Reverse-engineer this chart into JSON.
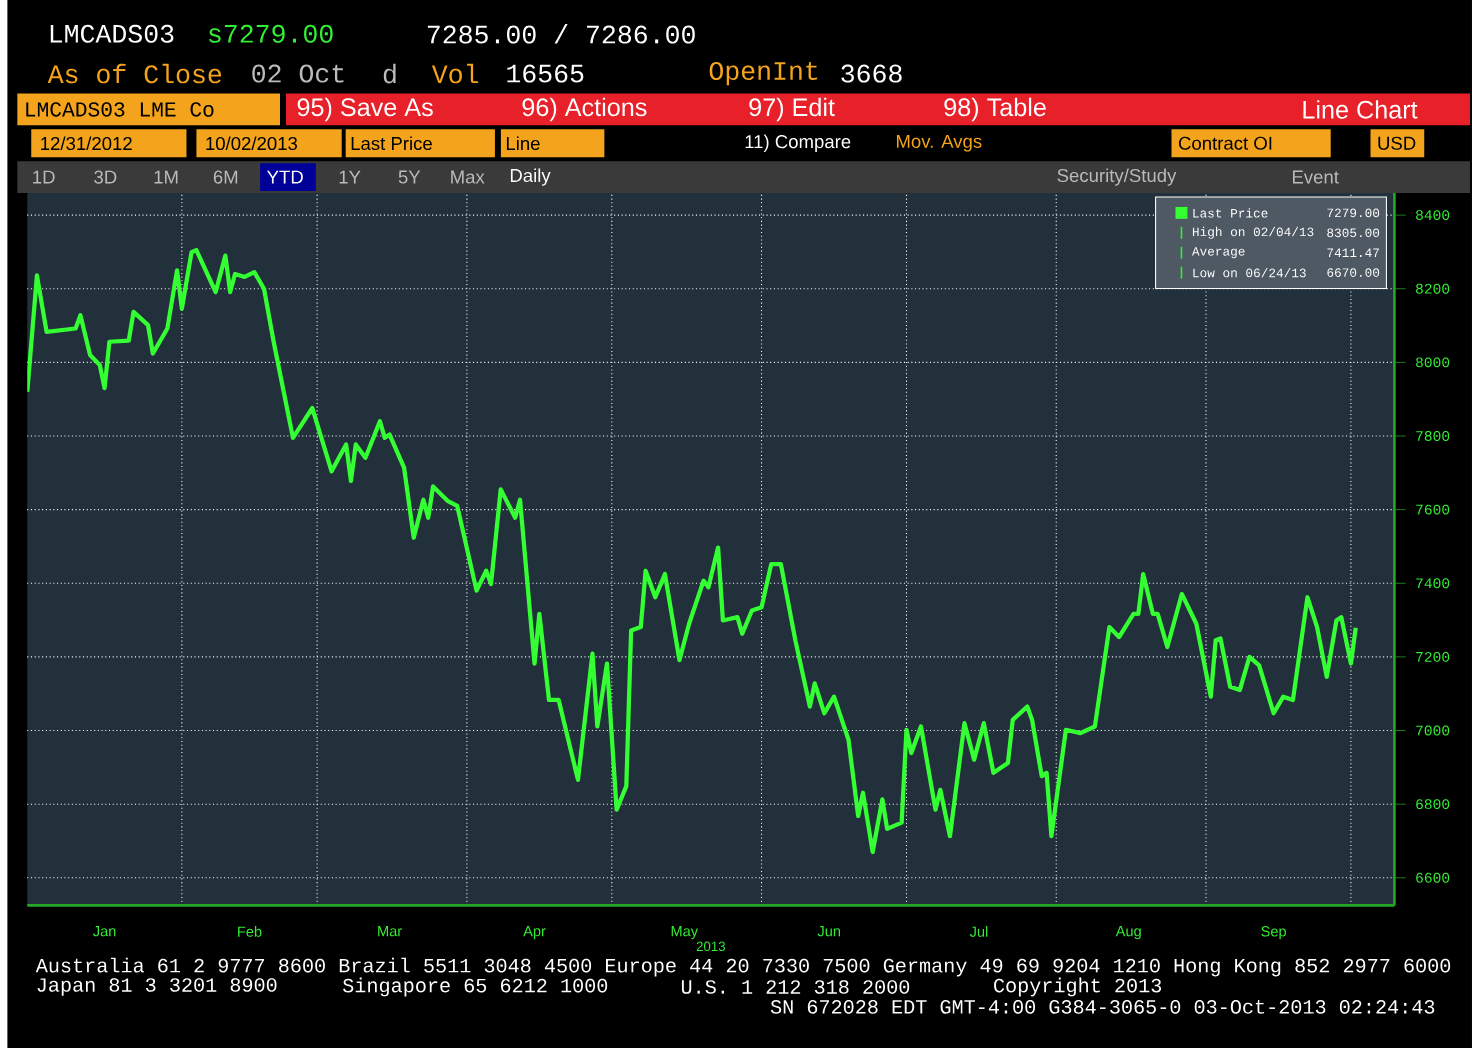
{
  "chart_data": {
    "type": "line",
    "title": "LMCADS03",
    "xlabel": "2013",
    "xlim": [
      "2012-12-31",
      "2013-10-10"
    ],
    "ylim": [
      6525,
      8460
    ],
    "xticks": [
      {
        "value": "2013-01-16",
        "label": "Jan"
      },
      {
        "value": "2013-02-01",
        "label": null
      },
      {
        "value": "2013-02-15",
        "label": "Feb"
      },
      {
        "value": "2013-03-01",
        "label": null
      },
      {
        "value": "2013-03-16",
        "label": "Mar"
      },
      {
        "value": "2013-04-01",
        "label": null
      },
      {
        "value": "2013-04-15",
        "label": "Apr"
      },
      {
        "value": "2013-05-01",
        "label": null
      },
      {
        "value": "2013-05-16",
        "label": "May"
      },
      {
        "value": "2013-06-01",
        "label": null
      },
      {
        "value": "2013-06-15",
        "label": "Jun"
      },
      {
        "value": "2013-07-01",
        "label": null
      },
      {
        "value": "2013-07-16",
        "label": "Jul"
      },
      {
        "value": "2013-08-01",
        "label": null
      },
      {
        "value": "2013-08-16",
        "label": "Aug"
      },
      {
        "value": "2013-09-01",
        "label": null
      },
      {
        "value": "2013-09-15",
        "label": "Sep"
      },
      {
        "value": "2013-10-01",
        "label": null
      }
    ],
    "yticks": [
      6600,
      6800,
      7000,
      7200,
      7400,
      7600,
      7800,
      8000,
      8200,
      8400
    ],
    "grid": true,
    "legend": "top right",
    "series": [
      {
        "name": "Last Price",
        "color": "#33ff33",
        "x": [
          "2012-12-31",
          "2013-01-02",
          "2013-01-04",
          "2013-01-10",
          "2013-01-11",
          "2013-01-13",
          "2013-01-15",
          "2013-01-16",
          "2013-01-17",
          "2013-01-21",
          "2013-01-22",
          "2013-01-25",
          "2013-01-26",
          "2013-01-29",
          "2013-01-31",
          "2013-02-01",
          "2013-02-03",
          "2013-02-04",
          "2013-02-08",
          "2013-02-10",
          "2013-02-11",
          "2013-02-12",
          "2013-02-14",
          "2013-02-16",
          "2013-02-18",
          "2013-02-20",
          "2013-02-24",
          "2013-02-28",
          "2013-03-04",
          "2013-03-07",
          "2013-03-08",
          "2013-03-09",
          "2013-03-11",
          "2013-03-14",
          "2013-03-15",
          "2013-03-16",
          "2013-03-19",
          "2013-03-21",
          "2013-03-23",
          "2013-03-24",
          "2013-03-25",
          "2013-03-28",
          "2013-03-30",
          "2013-04-03",
          "2013-04-05",
          "2013-04-06",
          "2013-04-08",
          "2013-04-11",
          "2013-04-12",
          "2013-04-15",
          "2013-04-16",
          "2013-04-18",
          "2013-04-20",
          "2013-04-24",
          "2013-04-27",
          "2013-04-28",
          "2013-04-30",
          "2013-05-02",
          "2013-05-04",
          "2013-05-05",
          "2013-05-07",
          "2013-05-08",
          "2013-05-10",
          "2013-05-12",
          "2013-05-15",
          "2013-05-17",
          "2013-05-20",
          "2013-05-21",
          "2013-05-23",
          "2013-05-24",
          "2013-05-27",
          "2013-05-28",
          "2013-05-30",
          "2013-06-01",
          "2013-06-03",
          "2013-06-05",
          "2013-06-08",
          "2013-06-11",
          "2013-06-12",
          "2013-06-14",
          "2013-06-16",
          "2013-06-19",
          "2013-06-21",
          "2013-06-22",
          "2013-06-24",
          "2013-06-26",
          "2013-06-27",
          "2013-06-30",
          "2013-07-01",
          "2013-07-02",
          "2013-07-04",
          "2013-07-07",
          "2013-07-08",
          "2013-07-10",
          "2013-07-13",
          "2013-07-15",
          "2013-07-17",
          "2013-07-19",
          "2013-07-22",
          "2013-07-23",
          "2013-07-26",
          "2013-07-27",
          "2013-07-29",
          "2013-07-30",
          "2013-07-31",
          "2013-08-03",
          "2013-08-06",
          "2013-08-09",
          "2013-08-11",
          "2013-08-12",
          "2013-08-14",
          "2013-08-17",
          "2013-08-18",
          "2013-08-19",
          "2013-08-21",
          "2013-08-22",
          "2013-08-24",
          "2013-08-27",
          "2013-08-30",
          "2013-09-02",
          "2013-09-03",
          "2013-09-04",
          "2013-09-06",
          "2013-09-08",
          "2013-09-10",
          "2013-09-12",
          "2013-09-15",
          "2013-09-17",
          "2013-09-19",
          "2013-09-22",
          "2013-09-24",
          "2013-09-26",
          "2013-09-28",
          "2013-09-29",
          "2013-10-01",
          "2013-10-02"
        ],
        "values": [
          7920,
          8236,
          8083,
          8092,
          8128,
          8020,
          7993,
          7930,
          8056,
          8059,
          8137,
          8101,
          8024,
          8092,
          8250,
          8146,
          8299,
          8305,
          8191,
          8290,
          8191,
          8240,
          8232,
          8245,
          8200,
          8056,
          7795,
          7876,
          7704,
          7777,
          7678,
          7777,
          7741,
          7840,
          7795,
          7804,
          7714,
          7524,
          7627,
          7578,
          7663,
          7624,
          7610,
          7380,
          7434,
          7398,
          7655,
          7578,
          7627,
          7182,
          7317,
          7083,
          7083,
          6866,
          7209,
          7011,
          7182,
          6785,
          6849,
          7272,
          7281,
          7434,
          7362,
          7425,
          7191,
          7290,
          7407,
          7389,
          7497,
          7299,
          7308,
          7263,
          7326,
          7335,
          7452,
          7452,
          7245,
          7065,
          7128,
          7047,
          7092,
          6975,
          6768,
          6831,
          6670,
          6813,
          6733,
          6750,
          7002,
          6939,
          7011,
          6785,
          6839,
          6713,
          7020,
          6921,
          7020,
          6885,
          6912,
          7029,
          7065,
          7029,
          6876,
          6885,
          6713,
          7002,
          6993,
          7011,
          7191,
          7281,
          7254,
          7317,
          7317,
          7425,
          7317,
          7317,
          7227,
          7371,
          7290,
          7092,
          7245,
          7250,
          7119,
          7110,
          7200,
          7177,
          7047,
          7092,
          7083,
          7362,
          7281,
          7146,
          7299,
          7308,
          7182,
          7279
        ]
      }
    ],
    "annotations": [
      "s7279.00",
      "7285.00 / 7286.00",
      "As of Close",
      "02 Oct",
      "d",
      "Vol",
      "16565",
      "OpenInt",
      "3668",
      "LMCADS03 LME Co",
      "95) Save As",
      "96) Actions",
      "97) Edit",
      "98) Table",
      "Line Chart",
      "12/31/2012",
      "10/02/2013",
      "Last Price",
      "Line",
      "11) Compare",
      "Mov. Avgs",
      "Contract OI",
      "USD",
      "1D",
      "3D",
      "1M",
      "6M",
      "YTD",
      "1Y",
      "5Y",
      "Max",
      "Daily",
      "Security/Study",
      "Event",
      "Australia 61 2 9777 8600 Brazil 5511 3048 4500 Europe 44 20 7330 7500 Germany 49 69 9204 1210 Hong Kong 852 2977 6000",
      "Japan 81 3 3201 8900",
      "Singapore 65 6212 1000",
      "U.S. 1 212 318 2000",
      "Copyright 2013",
      "SN 672028 EDT  GMT-4:00 G384-3065-0 03-Oct-2013 02:24:43",
      "7279.00",
      "High on 02/04/13",
      "8305.00",
      "Average",
      "7411.47",
      "Low on 06/24/13",
      "6670.00"
    ]
  }
}
